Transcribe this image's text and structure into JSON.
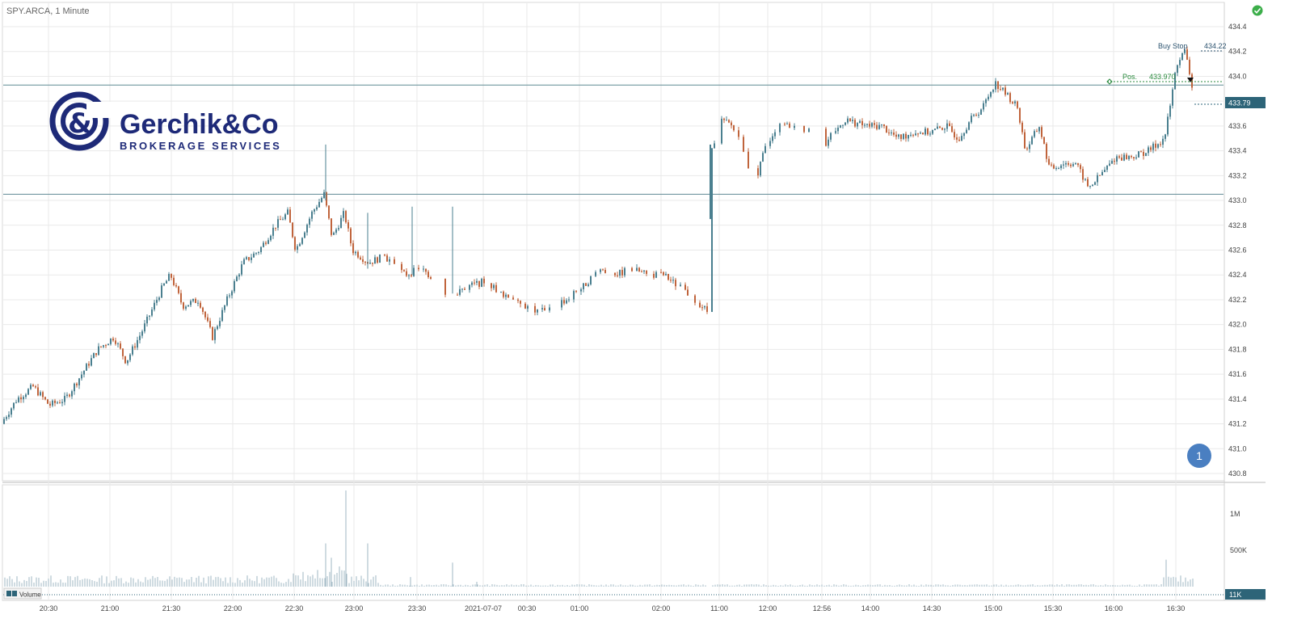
{
  "header": {
    "title": "SPY.ARCA, 1 Minute"
  },
  "status_icon": "checkmark-circle-icon",
  "logo": {
    "name": "Gerchik&Co",
    "tagline": "BROKERAGE SERVICES",
    "color": "#1e2a78"
  },
  "badge": {
    "label": "1",
    "color": "#4a7fc1"
  },
  "volume_legend": {
    "label": "Volume"
  },
  "colors": {
    "up": "#4a7f8f",
    "down": "#c0643c",
    "level": "#5f8a94",
    "order": "#2a8a3e",
    "price_tag": "#2d6478"
  },
  "chart_data": {
    "type": "candlestick",
    "title": "SPY.ARCA, 1 Minute",
    "x_ticks": [
      "20:30",
      "21:00",
      "21:30",
      "22:00",
      "22:30",
      "23:00",
      "23:30",
      "2021-07-07",
      "00:30",
      "01:00",
      "02:00",
      "11:00",
      "12:00",
      "12:56",
      "14:00",
      "14:30",
      "15:00",
      "15:30",
      "16:00",
      "16:30"
    ],
    "y_ticks": [
      "434.4",
      "434.2",
      "434.0",
      "433.8",
      "433.6",
      "433.4",
      "433.2",
      "433.0",
      "432.8",
      "432.6",
      "432.4",
      "432.2",
      "432.0",
      "431.8",
      "431.6",
      "431.4",
      "431.2",
      "431.0",
      "430.8"
    ],
    "ylim": [
      430.8,
      434.4
    ],
    "price_path": [
      [
        0,
        431.2
      ],
      [
        20,
        431.4
      ],
      [
        40,
        431.5
      ],
      [
        60,
        431.35
      ],
      [
        80,
        431.4
      ],
      [
        100,
        431.6
      ],
      [
        120,
        431.8
      ],
      [
        140,
        431.9
      ],
      [
        155,
        431.7
      ],
      [
        175,
        431.95
      ],
      [
        200,
        432.3
      ],
      [
        210,
        432.4
      ],
      [
        225,
        432.15
      ],
      [
        245,
        432.2
      ],
      [
        262,
        431.9
      ],
      [
        280,
        432.2
      ],
      [
        300,
        432.5
      ],
      [
        320,
        432.6
      ],
      [
        340,
        432.8
      ],
      [
        355,
        432.9
      ],
      [
        365,
        432.6
      ],
      [
        385,
        432.9
      ],
      [
        400,
        433.05
      ],
      [
        410,
        432.7
      ],
      [
        425,
        432.9
      ],
      [
        435,
        432.6
      ],
      [
        455,
        432.5
      ],
      [
        475,
        432.55
      ],
      [
        500,
        432.4
      ],
      [
        520,
        432.45
      ],
      [
        540,
        432.35
      ],
      [
        555,
        432.2
      ],
      [
        575,
        432.3
      ],
      [
        600,
        432.35
      ],
      [
        620,
        432.25
      ],
      [
        640,
        432.2
      ],
      [
        660,
        432.1
      ],
      [
        680,
        432.15
      ],
      [
        700,
        432.2
      ],
      [
        720,
        432.3
      ],
      [
        740,
        432.45
      ],
      [
        760,
        432.4
      ],
      [
        780,
        432.45
      ],
      [
        800,
        432.4
      ],
      [
        820,
        432.4
      ],
      [
        840,
        432.3
      ],
      [
        860,
        432.2
      ],
      [
        875,
        432.1
      ],
      [
        880,
        433.4
      ],
      [
        890,
        433.65
      ],
      [
        905,
        433.6
      ],
      [
        920,
        433.4
      ],
      [
        932,
        433.1
      ],
      [
        945,
        433.4
      ],
      [
        960,
        433.6
      ],
      [
        980,
        433.6
      ],
      [
        1000,
        433.55
      ],
      [
        1012,
        433.3
      ],
      [
        1025,
        433.5
      ],
      [
        1045,
        433.65
      ],
      [
        1070,
        433.6
      ],
      [
        1090,
        433.6
      ],
      [
        1110,
        433.5
      ],
      [
        1130,
        433.55
      ],
      [
        1150,
        433.55
      ],
      [
        1170,
        433.6
      ],
      [
        1185,
        433.5
      ],
      [
        1200,
        433.65
      ],
      [
        1215,
        433.75
      ],
      [
        1230,
        433.95
      ],
      [
        1245,
        433.85
      ],
      [
        1258,
        433.75
      ],
      [
        1268,
        433.4
      ],
      [
        1285,
        433.6
      ],
      [
        1298,
        433.25
      ],
      [
        1315,
        433.3
      ],
      [
        1330,
        433.3
      ],
      [
        1346,
        433.1
      ],
      [
        1360,
        433.2
      ],
      [
        1380,
        433.35
      ],
      [
        1400,
        433.35
      ],
      [
        1420,
        433.4
      ],
      [
        1440,
        433.5
      ],
      [
        1448,
        433.8
      ],
      [
        1455,
        434.1
      ],
      [
        1465,
        434.2
      ],
      [
        1472,
        434.0
      ],
      [
        1476,
        433.8
      ]
    ],
    "horizontal_levels": [
      433.93,
      433.05
    ],
    "current_price": "433.79",
    "buy_stop": {
      "label": "Buy Stop",
      "price": "434.22"
    },
    "position": {
      "label": "Pos.",
      "price": "433.970"
    },
    "volume": {
      "y_ticks": [
        "1M",
        "500K"
      ],
      "current_label": "11K",
      "spikes": [
        [
          403,
          0.45
        ],
        [
          410,
          0.3
        ],
        [
          428,
          1.0
        ],
        [
          455,
          0.45
        ],
        [
          560,
          0.25
        ],
        [
          508,
          0.1
        ],
        [
          590,
          0.05
        ],
        [
          1443,
          0.28
        ]
      ]
    }
  }
}
